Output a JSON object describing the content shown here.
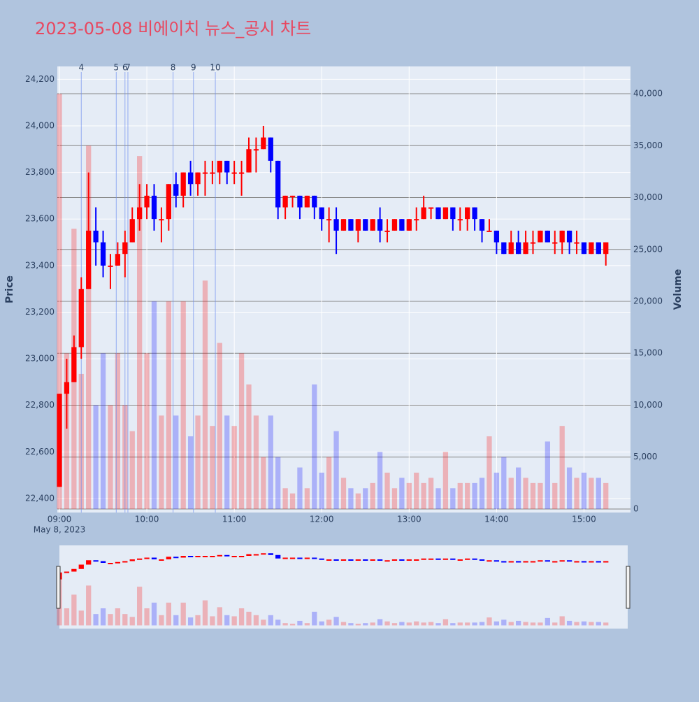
{
  "chart_data": {
    "type": "candlestick",
    "title": "2023-05-08 비에이치 뉴스_공시 차트",
    "y_label": "Price",
    "y2_label": "Volume",
    "x_date_label": "May 8, 2023",
    "up_color": "#ff0000",
    "down_color": "#0000ff",
    "xlim": [
      "09:00",
      "15:30"
    ],
    "xticks": [
      "09:00",
      "10:00",
      "11:00",
      "12:00",
      "13:00",
      "14:00",
      "15:00"
    ],
    "ylim": [
      22340,
      24255
    ],
    "yticks": [
      {
        "value": 22400,
        "label": "22,400"
      },
      {
        "value": 22600,
        "label": "22,600"
      },
      {
        "value": 22800,
        "label": "22,800"
      },
      {
        "value": 23000,
        "label": "23,000"
      },
      {
        "value": 23200,
        "label": "23,200"
      },
      {
        "value": 23400,
        "label": "23,400"
      },
      {
        "value": 23600,
        "label": "23,600"
      },
      {
        "value": 23800,
        "label": "23,800"
      },
      {
        "value": 24000,
        "label": "24,000"
      },
      {
        "value": 24200,
        "label": "24,200"
      }
    ],
    "y2lim": [
      -340,
      42630
    ],
    "y2ticks": [
      0,
      {
        "value": 5000,
        "label": "5,000"
      },
      {
        "value": 10000,
        "label": "10,000"
      },
      {
        "value": 15000,
        "label": "15,000"
      },
      {
        "value": 20000,
        "label": "20,000"
      },
      {
        "value": 25000,
        "label": "25,000"
      },
      {
        "value": 30000,
        "label": "30,000"
      },
      {
        "value": 35000,
        "label": "35,000"
      },
      {
        "value": 40000,
        "label": "40,000"
      }
    ],
    "news": [
      {
        "label": "4",
        "x": "09:15"
      },
      {
        "label": "5",
        "x": "09:39"
      },
      {
        "label": "6",
        "x": "09:45"
      },
      {
        "label": "7",
        "x": "09:47"
      },
      {
        "label": "8",
        "x": "10:18"
      },
      {
        "label": "9",
        "x": "10:32"
      },
      {
        "label": "10",
        "x": "10:47"
      }
    ],
    "x": [
      "09:00",
      "09:05",
      "09:10",
      "09:15",
      "09:20",
      "09:25",
      "09:30",
      "09:35",
      "09:40",
      "09:45",
      "09:50",
      "09:55",
      "10:00",
      "10:05",
      "10:10",
      "10:15",
      "10:20",
      "10:25",
      "10:30",
      "10:35",
      "10:40",
      "10:45",
      "10:50",
      "10:55",
      "11:00",
      "11:05",
      "11:10",
      "11:15",
      "11:20",
      "11:25",
      "11:30",
      "11:35",
      "11:40",
      "11:45",
      "11:50",
      "11:55",
      "12:00",
      "12:05",
      "12:10",
      "12:15",
      "12:20",
      "12:25",
      "12:30",
      "12:35",
      "12:40",
      "12:45",
      "12:50",
      "12:55",
      "13:00",
      "13:05",
      "13:10",
      "13:15",
      "13:20",
      "13:25",
      "13:30",
      "13:35",
      "13:40",
      "13:45",
      "13:50",
      "13:55",
      "14:00",
      "14:05",
      "14:10",
      "14:15",
      "14:20",
      "14:25",
      "14:30",
      "14:35",
      "14:40",
      "14:45",
      "14:50",
      "14:55",
      "15:00",
      "15:05",
      "15:10",
      "15:15"
    ],
    "open": [
      22450,
      22850,
      22900,
      23050,
      23300,
      23550,
      23500,
      23400,
      23400,
      23450,
      23500,
      23600,
      23650,
      23700,
      23600,
      23600,
      23750,
      23700,
      23800,
      23750,
      23800,
      23800,
      23800,
      23850,
      23800,
      23800,
      23800,
      23900,
      23900,
      23950,
      23850,
      23650,
      23700,
      23700,
      23650,
      23700,
      23650,
      23600,
      23600,
      23550,
      23600,
      23550,
      23600,
      23550,
      23600,
      23550,
      23550,
      23600,
      23550,
      23600,
      23600,
      23650,
      23650,
      23600,
      23650,
      23600,
      23600,
      23650,
      23600,
      23550,
      23550,
      23500,
      23450,
      23500,
      23450,
      23500,
      23500,
      23550,
      23500,
      23500,
      23550,
      23500,
      23500,
      23450,
      23500,
      23450
    ],
    "high": [
      22850,
      23000,
      23100,
      23350,
      23800,
      23650,
      23550,
      23450,
      23500,
      23550,
      23650,
      23750,
      23750,
      23750,
      23650,
      23750,
      23800,
      23800,
      23850,
      23800,
      23850,
      23850,
      23850,
      23850,
      23850,
      23850,
      23950,
      23950,
      24000,
      23950,
      23850,
      23700,
      23700,
      23700,
      23700,
      23700,
      23650,
      23650,
      23650,
      23600,
      23600,
      23600,
      23600,
      23600,
      23650,
      23600,
      23600,
      23600,
      23600,
      23650,
      23700,
      23650,
      23650,
      23650,
      23650,
      23650,
      23650,
      23650,
      23600,
      23600,
      23550,
      23500,
      23550,
      23550,
      23550,
      23550,
      23550,
      23550,
      23550,
      23550,
      23550,
      23550,
      23500,
      23500,
      23500,
      23500
    ],
    "low": [
      22450,
      22700,
      22900,
      23000,
      23300,
      23400,
      23350,
      23300,
      23400,
      23350,
      23500,
      23550,
      23600,
      23550,
      23500,
      23550,
      23650,
      23650,
      23700,
      23700,
      23700,
      23750,
      23750,
      23750,
      23750,
      23700,
      23800,
      23800,
      23900,
      23800,
      23600,
      23600,
      23650,
      23600,
      23650,
      23600,
      23550,
      23500,
      23450,
      23550,
      23550,
      23500,
      23550,
      23550,
      23500,
      23500,
      23550,
      23550,
      23550,
      23550,
      23600,
      23600,
      23600,
      23600,
      23550,
      23550,
      23550,
      23550,
      23500,
      23550,
      23450,
      23450,
      23450,
      23450,
      23450,
      23450,
      23500,
      23500,
      23450,
      23450,
      23450,
      23450,
      23450,
      23450,
      23450,
      23400
    ],
    "close": [
      22850,
      22900,
      23050,
      23300,
      23550,
      23500,
      23400,
      23400,
      23450,
      23500,
      23600,
      23650,
      23700,
      23600,
      23600,
      23750,
      23700,
      23800,
      23750,
      23800,
      23800,
      23800,
      23850,
      23800,
      23800,
      23800,
      23900,
      23900,
      23950,
      23850,
      23650,
      23700,
      23700,
      23650,
      23700,
      23650,
      23600,
      23600,
      23550,
      23600,
      23550,
      23600,
      23550,
      23600,
      23550,
      23550,
      23600,
      23550,
      23600,
      23600,
      23650,
      23650,
      23600,
      23650,
      23600,
      23600,
      23650,
      23600,
      23550,
      23550,
      23500,
      23450,
      23500,
      23450,
      23500,
      23500,
      23550,
      23500,
      23500,
      23550,
      23500,
      23500,
      23450,
      23500,
      23450,
      23500
    ],
    "volume": [
      40000,
      15000,
      27000,
      13000,
      35000,
      10000,
      15000,
      10000,
      15000,
      10000,
      7500,
      34000,
      15000,
      20000,
      9000,
      20000,
      9000,
      20000,
      7000,
      9000,
      22000,
      8000,
      16000,
      9000,
      8000,
      15000,
      12000,
      9000,
      5000,
      9000,
      5000,
      2000,
      1500,
      4000,
      2000,
      12000,
      3500,
      5000,
      7500,
      3000,
      2000,
      1500,
      2000,
      2500,
      5500,
      3500,
      2000,
      3000,
      2500,
      3500,
      2500,
      3000,
      2000,
      5500,
      2000,
      2500,
      2500,
      2500,
      3000,
      7000,
      3500,
      5000,
      3000,
      4000,
      3000,
      2500,
      2500,
      6500,
      2500,
      8000,
      4000,
      3000,
      3500,
      3000,
      3000,
      2500
    ]
  }
}
